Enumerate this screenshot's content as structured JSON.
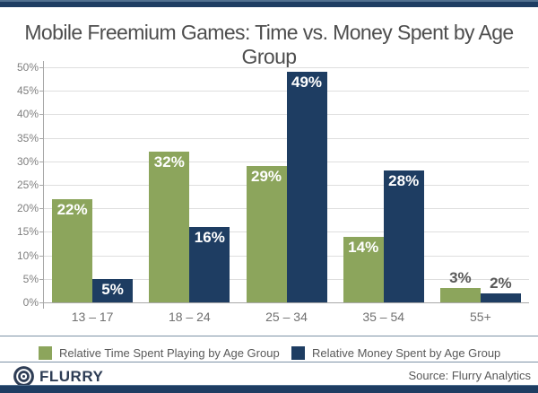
{
  "chart_data": {
    "type": "bar",
    "title": "Mobile Freemium Games: Time vs. Money Spent by Age Group",
    "categories": [
      "13 – 17",
      "18 – 24",
      "25 – 34",
      "35 – 54",
      "55+"
    ],
    "series": [
      {
        "name": "Relative Time Spent Playing by Age Group",
        "color": "#8CA55C",
        "values": [
          22,
          32,
          29,
          14,
          3
        ]
      },
      {
        "name": "Relative Money Spent by Age Group",
        "color": "#1E3D62",
        "values": [
          5,
          16,
          49,
          28,
          2
        ]
      }
    ],
    "value_label_format": "{v}%",
    "xlabel": "",
    "ylabel": "",
    "ylim": [
      0,
      50
    ],
    "ytick_step": 5,
    "ytick_suffix": "%",
    "grid": true,
    "legend_position": "bottom"
  },
  "footer": {
    "brand": "FLURRY",
    "source": "Source: Flurry Analytics"
  },
  "colors": {
    "accent_navy": "#1E3D62",
    "accent_green": "#8CA55C",
    "title_text": "#4E4E4E",
    "axis_text": "#7F7F7F",
    "gridline": "#DEDEDE",
    "axis_line": "#A8A8A8",
    "legend_text": "#595959",
    "divider": "#7E92A6",
    "brand_text": "#2E3D55"
  }
}
